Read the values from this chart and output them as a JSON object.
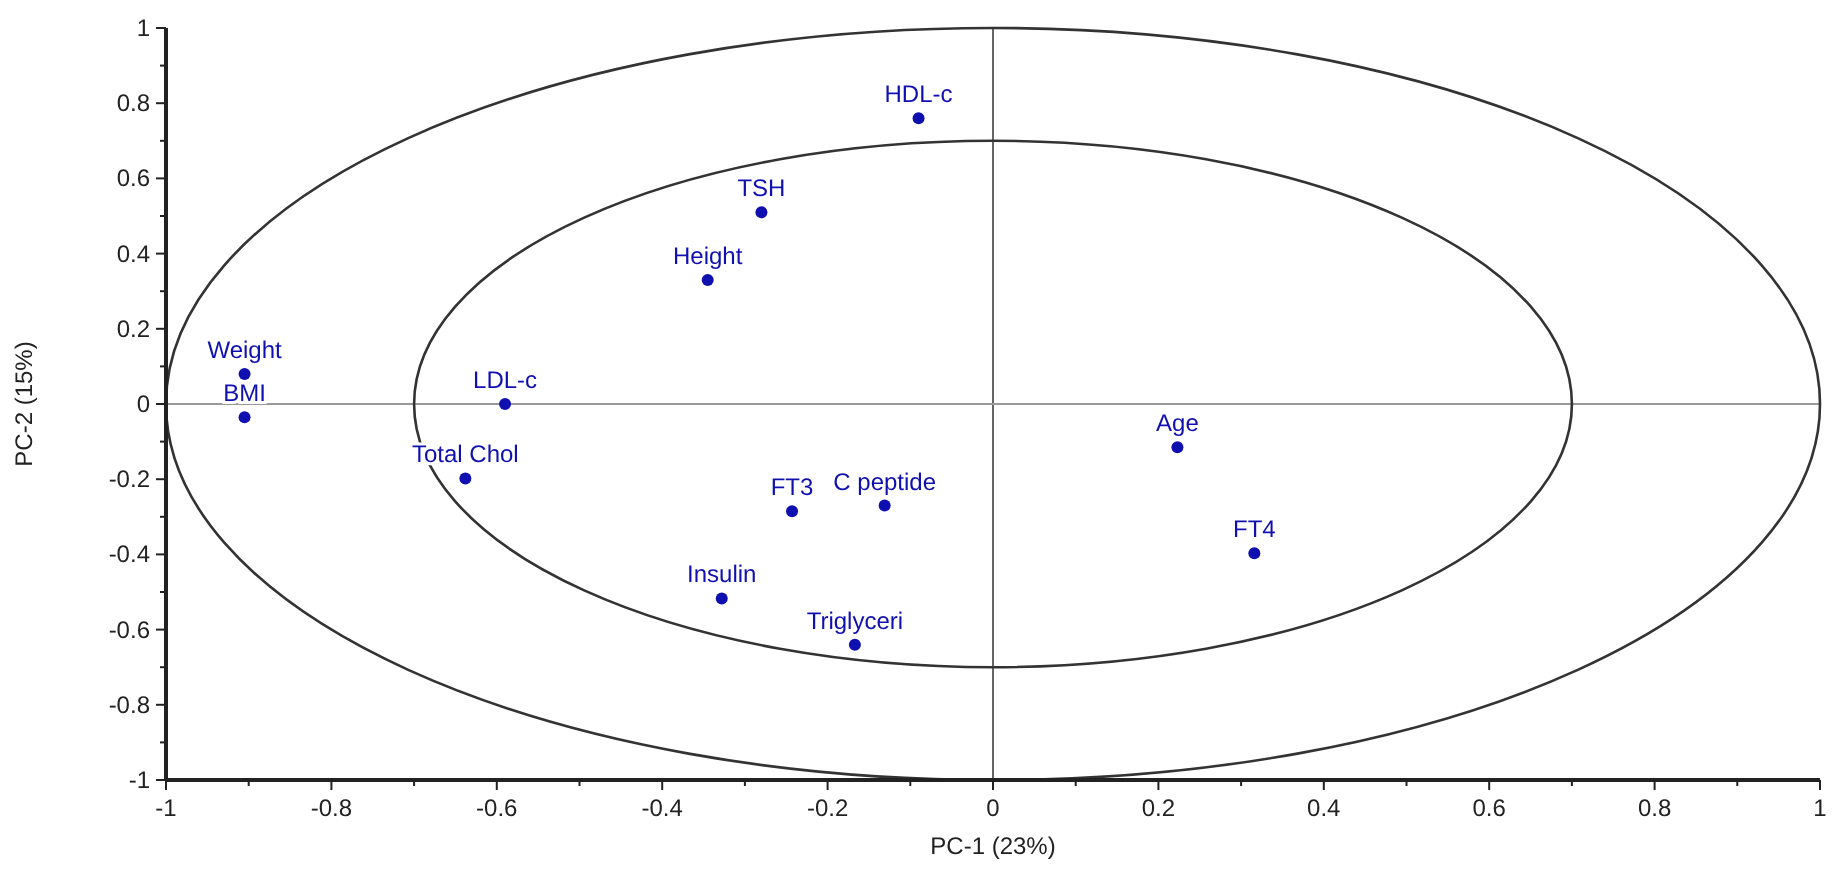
{
  "chart_data": {
    "type": "scatter",
    "xlabel": "PC-1 (23%)",
    "ylabel": "PC-2 (15%)",
    "xlim": [
      -1,
      1
    ],
    "ylim": [
      -1,
      1
    ],
    "xticks": [
      -1,
      {
        "value": -0.9,
        "label": null
      },
      -0.8,
      {
        "value": -0.7,
        "label": null
      },
      -0.6,
      {
        "value": -0.5,
        "label": null
      },
      -0.4,
      {
        "value": -0.3,
        "label": null
      },
      -0.2,
      {
        "value": -0.1,
        "label": null
      },
      0,
      {
        "value": 0.1,
        "label": null
      },
      0.2,
      {
        "value": 0.3,
        "label": null
      },
      0.4,
      {
        "value": 0.5,
        "label": null
      },
      0.6,
      {
        "value": 0.7,
        "label": null
      },
      0.8,
      {
        "value": 0.9,
        "label": null
      },
      1
    ],
    "yticks": [
      -1,
      {
        "value": -0.9,
        "label": null
      },
      -0.8,
      {
        "value": -0.7,
        "label": null
      },
      -0.6,
      {
        "value": -0.5,
        "label": null
      },
      -0.4,
      {
        "value": -0.3,
        "label": null
      },
      -0.2,
      {
        "value": -0.1,
        "label": null
      },
      0,
      {
        "value": 0.1,
        "label": null
      },
      0.2,
      {
        "value": 0.3,
        "label": null
      },
      0.4,
      {
        "value": 0.5,
        "label": null
      },
      0.6,
      {
        "value": 0.7,
        "label": null
      },
      0.8,
      {
        "value": 0.9,
        "label": null
      },
      1
    ],
    "marker": "circle",
    "series": [
      {
        "type": "scatter",
        "color": "#1010b0",
        "x": [
          -0.09,
          -0.28,
          -0.345,
          -0.905,
          -0.905,
          -0.59,
          -0.638,
          -0.243,
          -0.131,
          -0.328,
          -0.167,
          0.223,
          0.316
        ],
        "values": [
          0.76,
          0.51,
          0.33,
          0.08,
          -0.035,
          0,
          -0.198,
          -0.285,
          -0.27,
          -0.517,
          -0.64,
          -0.115,
          -0.397
        ]
      }
    ],
    "ref_lines": [
      {
        "axis": "x",
        "value": 0,
        "color": "#666666"
      },
      {
        "axis": "y",
        "value": 0,
        "color": "#999999"
      }
    ],
    "annotations": [
      {
        "text": "HDL-c",
        "x": -0.09,
        "y": 0.76
      },
      {
        "text": "TSH",
        "x": -0.28,
        "y": 0.51
      },
      {
        "text": "Height",
        "x": -0.345,
        "y": 0.33
      },
      {
        "text": "Weight",
        "x": -0.905,
        "y": 0.08
      },
      {
        "text": "BMI",
        "x": -0.905,
        "y": -0.035
      },
      {
        "text": "LDL-c",
        "x": -0.59,
        "y": 0
      },
      {
        "text": "Total Chol",
        "x": -0.638,
        "y": -0.198
      },
      {
        "text": "FT3",
        "x": -0.243,
        "y": -0.285
      },
      {
        "text": "C peptide",
        "x": -0.131,
        "y": -0.27
      },
      {
        "text": "Insulin",
        "x": -0.328,
        "y": -0.517
      },
      {
        "text": "Triglyceri",
        "x": -0.167,
        "y": -0.64
      },
      {
        "text": "Age",
        "x": 0.223,
        "y": -0.115
      },
      {
        "text": "FT4",
        "x": 0.316,
        "y": -0.397
      }
    ]
  }
}
